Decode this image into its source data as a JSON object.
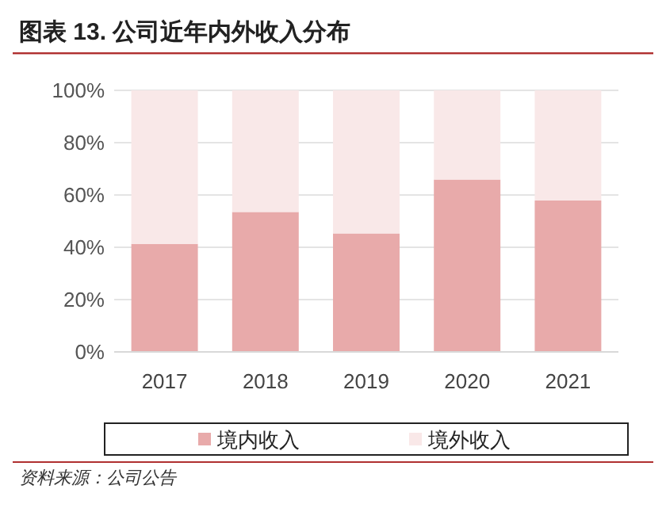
{
  "chart_data": {
    "type": "bar",
    "stacked": true,
    "title": "图表 13. 公司近年内外收入分布",
    "categories": [
      "2017",
      "2018",
      "2019",
      "2020",
      "2021"
    ],
    "series": [
      {
        "name": "境内收入",
        "color": "#e8aaaa",
        "values": [
          41.3,
          53.5,
          45.3,
          65.9,
          57.9
        ]
      },
      {
        "name": "境外收入",
        "color": "#f9e8e8",
        "values": [
          58.7,
          46.5,
          54.7,
          34.1,
          42.1
        ]
      }
    ],
    "ylim": [
      0,
      100
    ],
    "yticks": [
      {
        "value": 0,
        "label": "0%"
      },
      {
        "value": 20,
        "label": "20%"
      },
      {
        "value": 40,
        "label": "40%"
      },
      {
        "value": 60,
        "label": "60%"
      },
      {
        "value": 80,
        "label": "80%"
      },
      {
        "value": 100,
        "label": "100%"
      }
    ],
    "grid": "y",
    "legend": "bottom",
    "annotations": [
      "资料来源：公司公告"
    ]
  }
}
